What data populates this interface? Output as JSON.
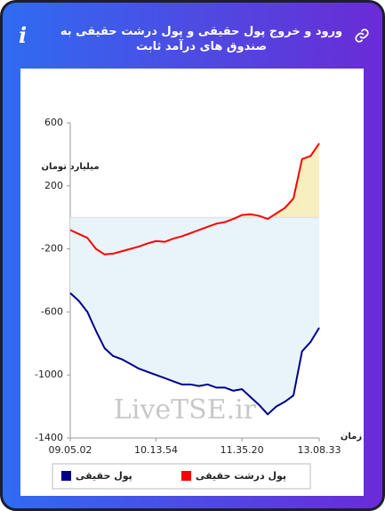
{
  "chart_data": {
    "type": "line",
    "title": "ورود و خروج پول حقیقی و پول درشت حقیقی به صندوق های درآمد ثابت",
    "ylabel": "میلیارد تومان",
    "xlabel": "زمان",
    "watermark": "LiveTSE.ir",
    "categories": [
      "09.05.02",
      null,
      null,
      null,
      null,
      null,
      null,
      null,
      null,
      null,
      "10.13.54",
      null,
      null,
      null,
      null,
      null,
      null,
      null,
      null,
      null,
      "11.35.20",
      null,
      null,
      null,
      null,
      null,
      null,
      null,
      null,
      "13.08.33"
    ],
    "series": [
      {
        "name": "پول حقیقی",
        "color": "#00008b",
        "fill": "#e8f3fa",
        "values": [
          -480,
          -530,
          -600,
          -720,
          -830,
          -880,
          -900,
          -930,
          -960,
          -980,
          -1000,
          -1020,
          -1040,
          -1060,
          -1060,
          -1070,
          -1060,
          -1080,
          -1080,
          -1100,
          -1090,
          -1140,
          -1190,
          -1250,
          -1200,
          -1170,
          -1130,
          -850,
          -790,
          -700
        ]
      },
      {
        "name": "پول درشت حقیقی",
        "color": "#ff0000",
        "fill": "#f7efbf",
        "values": [
          -80,
          -105,
          -130,
          -200,
          -235,
          -230,
          -215,
          -200,
          -185,
          -165,
          -150,
          -155,
          -135,
          -120,
          -100,
          -80,
          -60,
          -40,
          -30,
          -10,
          15,
          20,
          10,
          -10,
          25,
          60,
          120,
          370,
          390,
          470
        ]
      }
    ],
    "ylim": [
      -1400,
      600
    ],
    "yticks": [
      -1400,
      -1000,
      -600,
      -200,
      200,
      600
    ]
  }
}
